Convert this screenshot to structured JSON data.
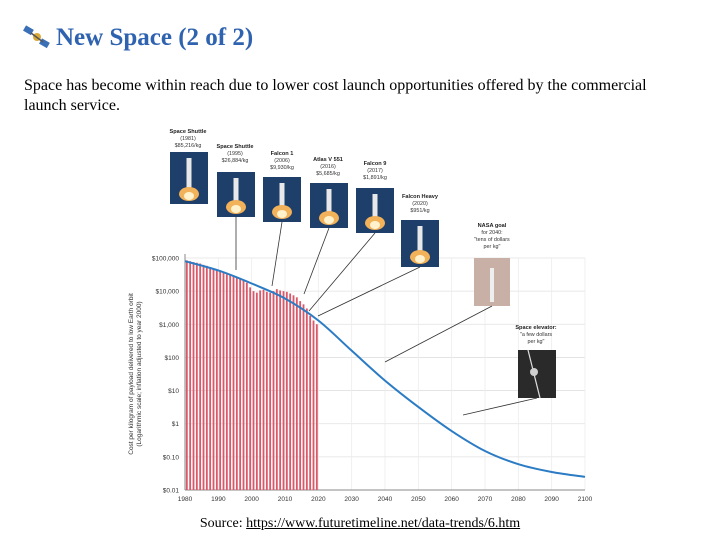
{
  "slide": {
    "title": "New Space (2 of 2)",
    "subtitle": "Space has become within reach due to lower cost launch opportunities offered by the commercial launch service.",
    "source_label": "Source:",
    "source_url": "https://www.futuretimeline.net/data-trends/6.htm",
    "title_color": "#2f63b0",
    "title_icon": "satellite-icon"
  },
  "chart_data": {
    "type": "line",
    "ylabel": "Cost per kilogram of payload delivered to low Earth orbit",
    "ylabel_note": "(Logarithmic scale; inflation adjusted to year 2000)",
    "y_scale": "log",
    "ylim": [
      0.01,
      100000
    ],
    "xlim": [
      1980,
      2100
    ],
    "x_ticks": [
      1980,
      1990,
      2000,
      2010,
      2020,
      2030,
      2040,
      2050,
      2060,
      2070,
      2080,
      2090,
      2100
    ],
    "x_tick_labels": [
      "1980",
      "1990",
      "2000",
      "2010",
      "2020",
      "2030",
      "2040",
      "2050",
      "2060",
      "2070",
      "2080",
      "2090",
      "2100"
    ],
    "y_ticks": [
      100000,
      10000,
      1000,
      100,
      10,
      1,
      0.1,
      0.01
    ],
    "y_tick_labels": [
      "$100,000",
      "$10,000",
      "$1,000",
      "$100",
      "$10",
      "$1",
      "$0.10",
      "$0.01"
    ],
    "grid": true,
    "line_color": "#2b7cc4",
    "bar_color": "#d85a6a",
    "trend_line": {
      "x": [
        1980,
        1990,
        2000,
        2010,
        2020,
        2030,
        2040,
        2050,
        2060,
        2070,
        2080,
        2090,
        2100
      ],
      "y": [
        80000,
        42000,
        17000,
        6000,
        1300,
        160,
        20,
        3.2,
        0.6,
        0.15,
        0.06,
        0.035,
        0.025
      ]
    },
    "bars": {
      "x": [
        1981,
        1982,
        1983,
        1984,
        1985,
        1986,
        1987,
        1988,
        1989,
        1990,
        1991,
        1992,
        1993,
        1994,
        1995,
        1996,
        1997,
        1998,
        1999,
        2000,
        2001,
        2002,
        2003,
        2004,
        2005,
        2006,
        2007,
        2008,
        2009,
        2010,
        2011,
        2012,
        2013,
        2014,
        2015,
        2016,
        2017,
        2018,
        2019,
        2020
      ],
      "y": [
        85000,
        80000,
        75000,
        72000,
        68000,
        62000,
        58000,
        52000,
        48000,
        45000,
        40000,
        36000,
        32000,
        30000,
        28000,
        26000,
        24000,
        22000,
        18000,
        13000,
        10000,
        9000,
        10500,
        11000,
        9500,
        9000,
        10000,
        11500,
        10500,
        10000,
        9500,
        8500,
        7500,
        6500,
        5000,
        4000,
        3000,
        1800,
        1300,
        1000
      ]
    },
    "annotations": [
      {
        "title": "Space Shuttle",
        "lines": [
          "(1981)",
          "$85,216/kg"
        ],
        "year": 1981,
        "value": 85216
      },
      {
        "title": "Space Shuttle",
        "lines": [
          "(1995)",
          "$26,884/kg"
        ],
        "year": 1995,
        "value": 26884
      },
      {
        "title": "Falcon 1",
        "lines": [
          "(2006)",
          "$9,930/kg"
        ],
        "year": 2006,
        "value": 9930
      },
      {
        "title": "Atlas V 551",
        "lines": [
          "(2016)",
          "$5,685/kg"
        ],
        "year": 2016,
        "value": 5685
      },
      {
        "title": "Falcon 9",
        "lines": [
          "(2017)",
          "$1,891/kg"
        ],
        "year": 2017,
        "value": 1891
      },
      {
        "title": "Falcon Heavy",
        "lines": [
          "(2020)",
          "$951/kg"
        ],
        "year": 2020,
        "value": 951
      },
      {
        "title": "NASA goal",
        "lines": [
          "for 2040:",
          "\"tens of dollars",
          "per kg\""
        ],
        "year": 2040,
        "value": 50
      },
      {
        "title": "Space elevator:",
        "lines": [
          "\"a few dollars",
          "per kg\""
        ],
        "year": 2064,
        "value": 1.5
      }
    ]
  }
}
